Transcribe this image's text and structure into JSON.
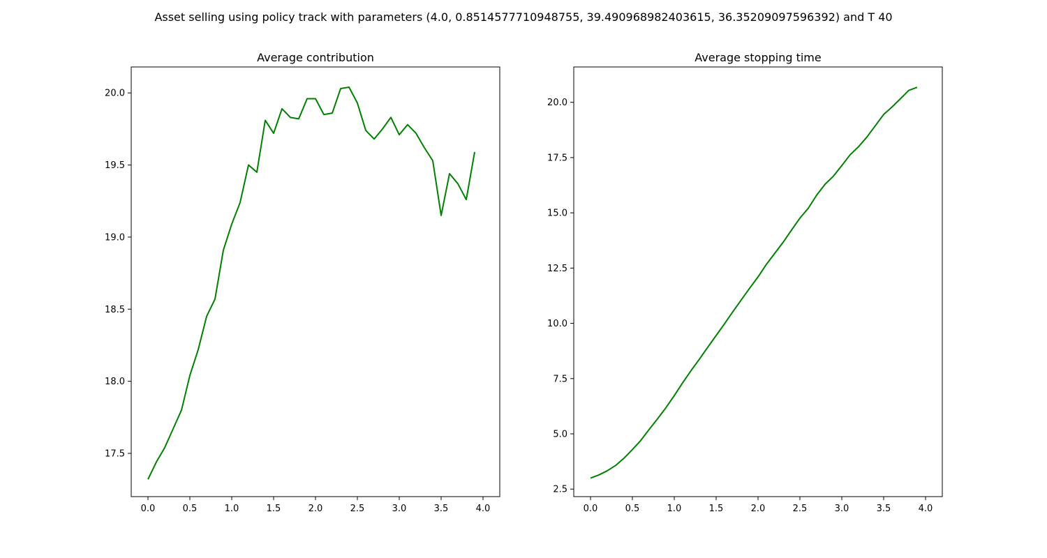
{
  "figure": {
    "suptitle": "Asset selling using policy track with parameters (4.0, 0.8514577710948755, 39.490968982403615, 36.35209097596392) and T 40"
  },
  "colors": {
    "series": "#008000",
    "axes": "#000000",
    "background": "#ffffff"
  },
  "chart_data": [
    {
      "type": "line",
      "title": "Average contribution",
      "xlabel": "",
      "ylabel": "",
      "xlim": [
        -0.2,
        4.2
      ],
      "ylim": [
        17.2,
        20.18
      ],
      "xticks": [
        0.0,
        0.5,
        1.0,
        1.5,
        2.0,
        2.5,
        3.0,
        3.5,
        4.0
      ],
      "xtick_labels": [
        "0.0",
        "0.5",
        "1.0",
        "1.5",
        "2.0",
        "2.5",
        "3.0",
        "3.5",
        "4.0"
      ],
      "yticks": [
        17.5,
        18.0,
        18.5,
        19.0,
        19.5,
        20.0
      ],
      "ytick_labels": [
        "17.5",
        "18.0",
        "18.5",
        "19.0",
        "19.5",
        "20.0"
      ],
      "grid": false,
      "x": [
        0.0,
        0.1,
        0.2,
        0.3,
        0.4,
        0.5,
        0.6,
        0.7,
        0.8,
        0.9,
        1.0,
        1.1,
        1.2,
        1.3,
        1.4,
        1.5,
        1.6,
        1.7,
        1.8,
        1.9,
        2.0,
        2.1,
        2.2,
        2.3,
        2.4,
        2.5,
        2.6,
        2.7,
        2.8,
        2.9,
        3.0,
        3.1,
        3.2,
        3.3,
        3.4,
        3.5,
        3.6,
        3.7,
        3.8,
        3.9,
        4.0
      ],
      "values": [
        17.32,
        17.44,
        17.54,
        17.67,
        17.8,
        18.04,
        18.22,
        18.45,
        18.57,
        18.91,
        19.09,
        19.24,
        19.5,
        19.45,
        19.81,
        19.72,
        19.89,
        19.83,
        19.82,
        19.96,
        19.96,
        19.85,
        19.86,
        20.03,
        20.04,
        19.93,
        19.74,
        19.68,
        19.75,
        19.83,
        19.71,
        19.78,
        19.72,
        19.62,
        19.53,
        19.15,
        19.44,
        19.37,
        19.26,
        19.59,
        null
      ]
    },
    {
      "type": "line",
      "title": "Average stopping time",
      "xlabel": "",
      "ylabel": "",
      "xlim": [
        -0.2,
        4.2
      ],
      "ylim": [
        2.16,
        21.6
      ],
      "xticks": [
        0.0,
        0.5,
        1.0,
        1.5,
        2.0,
        2.5,
        3.0,
        3.5,
        4.0
      ],
      "xtick_labels": [
        "0.0",
        "0.5",
        "1.0",
        "1.5",
        "2.0",
        "2.5",
        "3.0",
        "3.5",
        "4.0"
      ],
      "yticks": [
        2.5,
        5.0,
        7.5,
        10.0,
        12.5,
        15.0,
        17.5,
        20.0
      ],
      "ytick_labels": [
        "2.5",
        "5.0",
        "7.5",
        "10.0",
        "12.5",
        "15.0",
        "17.5",
        "20.0"
      ],
      "grid": false,
      "x": [
        0.0,
        0.1,
        0.2,
        0.3,
        0.4,
        0.5,
        0.6,
        0.7,
        0.8,
        0.9,
        1.0,
        1.1,
        1.2,
        1.3,
        1.4,
        1.5,
        1.6,
        1.7,
        1.8,
        1.9,
        2.0,
        2.1,
        2.2,
        2.3,
        2.4,
        2.5,
        2.6,
        2.7,
        2.8,
        2.9,
        3.0,
        3.1,
        3.2,
        3.3,
        3.4,
        3.5,
        3.6,
        3.7,
        3.8,
        3.9,
        4.0
      ],
      "values": [
        3.0,
        3.14,
        3.33,
        3.57,
        3.9,
        4.29,
        4.7,
        5.2,
        5.68,
        6.18,
        6.73,
        7.31,
        7.86,
        8.38,
        8.92,
        9.45,
        9.98,
        10.53,
        11.06,
        11.59,
        12.1,
        12.67,
        13.17,
        13.67,
        14.22,
        14.76,
        15.21,
        15.8,
        16.29,
        16.66,
        17.14,
        17.63,
        17.99,
        18.43,
        18.94,
        19.45,
        19.79,
        20.16,
        20.54,
        20.68,
        null
      ]
    }
  ]
}
